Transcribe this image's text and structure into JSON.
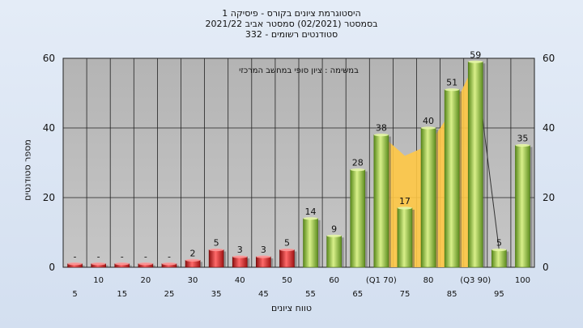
{
  "header": {
    "line1": "היסטוגרמת ציונים בקורס - פיסיקה 1",
    "line2": "בסמסטר  (02/2021)  סמסטר אביב 2021/22",
    "line3": "סטודנטים רשומים - 332"
  },
  "chart_data": {
    "type": "bar",
    "subtitle": "במשימה : ציון סופי במחשב המרכזי",
    "xlabel": "טווח ציונים",
    "ylabel": "מספר סטודנטים",
    "ylim": [
      0,
      60
    ],
    "yticks": [
      0,
      20,
      40,
      60
    ],
    "grid": true,
    "categories": [
      "5",
      "10",
      "15",
      "20",
      "25",
      "30",
      "35",
      "40",
      "45",
      "50",
      "55",
      "60",
      "65",
      "(Q1 70)",
      "75",
      "80",
      "85",
      "(Q3 90)",
      "95",
      "100"
    ],
    "values": [
      1,
      1,
      1,
      1,
      1,
      2,
      5,
      3,
      3,
      5,
      14,
      9,
      28,
      38,
      17,
      40,
      51,
      59,
      5,
      35
    ],
    "data_labels": [
      "-",
      "-",
      "-",
      "-",
      "-",
      "2",
      "5",
      "3",
      "3",
      "5",
      "14",
      "9",
      "28",
      "38",
      "17",
      "40",
      "51",
      "59",
      "5",
      "35"
    ],
    "fail_threshold_index": 10,
    "interquartile_band": {
      "x_from": "(Q1 70)",
      "x_to": "(Q3 90)",
      "values": [
        38,
        32,
        35,
        45,
        59
      ]
    },
    "colors": {
      "fail_bar": "#d42a2a",
      "pass_bar": "#8cbf3f",
      "band": "#ffc845",
      "plot_bg": "#bcbcbc"
    }
  }
}
